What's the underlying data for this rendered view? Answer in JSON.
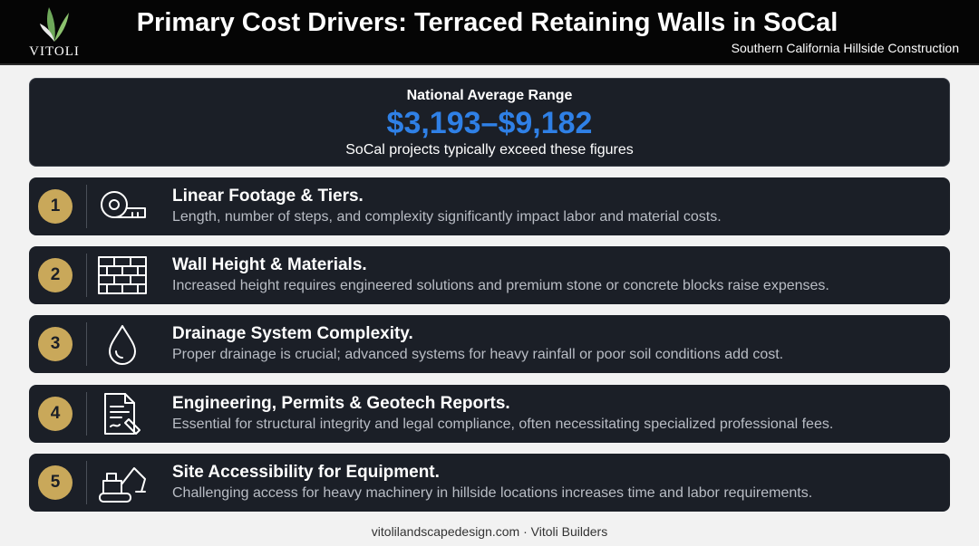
{
  "header": {
    "brand": "VITOLI",
    "title": "Primary Cost Drivers: Terraced Retaining Walls in SoCal",
    "subtitle": "Southern California Hillside Construction"
  },
  "summary": {
    "label": "National Average Range",
    "range": "$3,193–$9,182",
    "note": "SoCal projects typically exceed these figures"
  },
  "drivers": [
    {
      "number": "1",
      "title": "Linear Footage & Tiers.",
      "description": "Length, number of steps, and complexity significantly impact labor and material costs."
    },
    {
      "number": "2",
      "title": "Wall Height & Materials.",
      "description": "Increased height requires engineered solutions and premium stone or concrete blocks raise expenses."
    },
    {
      "number": "3",
      "title": "Drainage System Complexity.",
      "description": "Proper drainage is crucial; advanced systems for heavy rainfall or poor soil conditions add cost."
    },
    {
      "number": "4",
      "title": "Engineering, Permits & Geotech Reports.",
      "description": "Essential for structural integrity and legal compliance, often necessitating specialized professional fees."
    },
    {
      "number": "5",
      "title": "Site Accessibility for Equipment.",
      "description": "Challenging access for heavy machinery in hillside locations increases time and labor requirements."
    }
  ],
  "footer": "vitolilandscapedesign.com · Vitoli Builders"
}
